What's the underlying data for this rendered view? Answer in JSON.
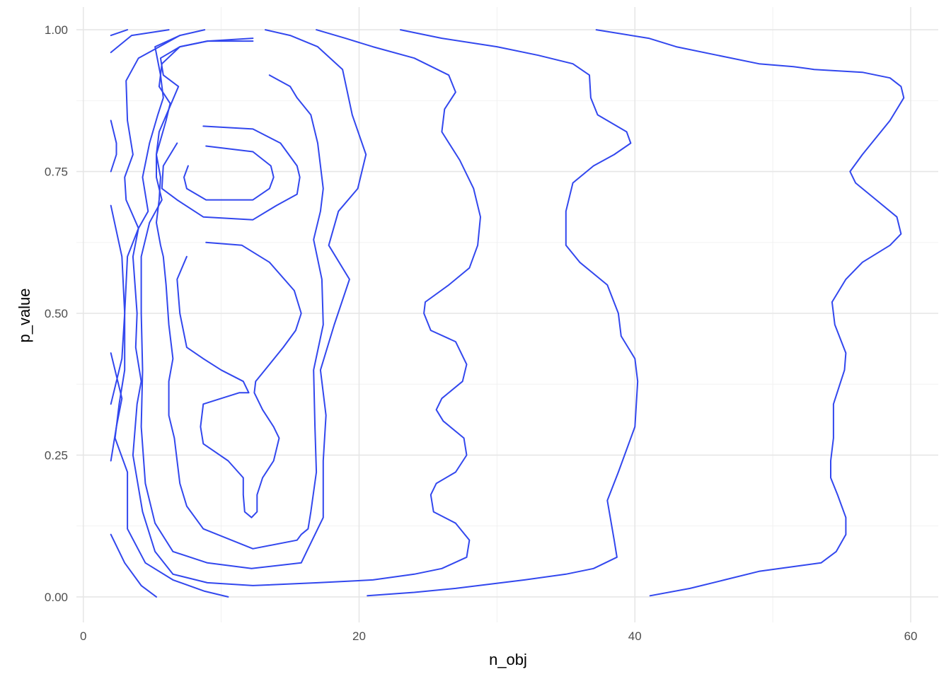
{
  "chart_data": {
    "type": "contour",
    "title": "",
    "xlabel": "n_obj",
    "ylabel": "p_value",
    "xlim": [
      -0.5,
      62
    ],
    "ylim": [
      -0.045,
      1.04
    ],
    "x_ticks": [
      0,
      20,
      40,
      60
    ],
    "x_tick_labels": [
      "0",
      "20",
      "40",
      "60"
    ],
    "x_minor_ticks": [
      10,
      30,
      50
    ],
    "y_ticks": [
      0,
      0.25,
      0.5,
      0.75,
      1
    ],
    "y_tick_labels": [
      "0.00",
      "0.25",
      "0.50",
      "0.75",
      "1.00"
    ],
    "y_minor_ticks": [
      0.125,
      0.375,
      0.625,
      0.875
    ],
    "grid": true,
    "legend": "none",
    "line_color": "#3247ee",
    "background": "#ffffff",
    "series": [
      {
        "points": [
          [
            2,
            0.99
          ],
          [
            3.2,
            1.0
          ]
        ]
      },
      {
        "points": [
          [
            2,
            0.84
          ],
          [
            2.4,
            0.8
          ],
          [
            2.4,
            0.78
          ],
          [
            2,
            0.75
          ]
        ]
      },
      {
        "points": [
          [
            2,
            0.69
          ],
          [
            2.8,
            0.6
          ],
          [
            3,
            0.5
          ],
          [
            2.8,
            0.42
          ],
          [
            2.2,
            0.36
          ],
          [
            2,
            0.34
          ]
        ]
      },
      {
        "points": [
          [
            2,
            0.43
          ],
          [
            2.8,
            0.35
          ],
          [
            2.4,
            0.3
          ],
          [
            2,
            0.24
          ]
        ]
      },
      {
        "points": [
          [
            2,
            0.11
          ],
          [
            3,
            0.06
          ],
          [
            4.2,
            0.02
          ],
          [
            5.3,
            0.0
          ]
        ]
      },
      {
        "points": [
          [
            2,
            0.96
          ],
          [
            3.5,
            0.99
          ],
          [
            6.2,
            1.0
          ]
        ]
      },
      {
        "points": [
          [
            8.8,
            1.0
          ],
          [
            7,
            0.99
          ],
          [
            4,
            0.95
          ],
          [
            3.1,
            0.91
          ],
          [
            3.2,
            0.84
          ],
          [
            3.6,
            0.78
          ],
          [
            3,
            0.74
          ],
          [
            3.1,
            0.7
          ],
          [
            4,
            0.65
          ],
          [
            3.2,
            0.6
          ],
          [
            3,
            0.5
          ],
          [
            3,
            0.4
          ],
          [
            2.6,
            0.34
          ],
          [
            2.3,
            0.28
          ],
          [
            3.2,
            0.22
          ],
          [
            3.2,
            0.12
          ],
          [
            4.5,
            0.06
          ],
          [
            6.5,
            0.03
          ],
          [
            8.8,
            0.01
          ],
          [
            10.5,
            0.0
          ]
        ]
      },
      {
        "points": [
          [
            13.2,
            1.0
          ],
          [
            15,
            0.99
          ],
          [
            17,
            0.97
          ],
          [
            18.8,
            0.93
          ],
          [
            19.5,
            0.85
          ],
          [
            20.5,
            0.78
          ],
          [
            19.9,
            0.72
          ],
          [
            18.5,
            0.68
          ],
          [
            17.8,
            0.62
          ],
          [
            19.3,
            0.56
          ],
          [
            18.2,
            0.48
          ],
          [
            17.2,
            0.4
          ],
          [
            17.6,
            0.32
          ],
          [
            17.4,
            0.24
          ],
          [
            17.4,
            0.14
          ],
          [
            16.2,
            0.08
          ],
          [
            15.8,
            0.06
          ],
          [
            12.2,
            0.05
          ],
          [
            9,
            0.06
          ],
          [
            6.5,
            0.08
          ],
          [
            5.2,
            0.13
          ],
          [
            4.5,
            0.2
          ],
          [
            4.2,
            0.3
          ],
          [
            4.3,
            0.4
          ],
          [
            4.2,
            0.5
          ],
          [
            4.2,
            0.6
          ],
          [
            4.8,
            0.66
          ],
          [
            5.7,
            0.7
          ],
          [
            5.3,
            0.74
          ],
          [
            5.3,
            0.78
          ],
          [
            6,
            0.84
          ],
          [
            6.3,
            0.87
          ],
          [
            5.5,
            0.9
          ],
          [
            5.7,
            0.94
          ],
          [
            7,
            0.97
          ],
          [
            9,
            0.98
          ],
          [
            12.3,
            0.98
          ]
        ]
      },
      {
        "points": [
          [
            16.9,
            1.0
          ],
          [
            19,
            0.985
          ],
          [
            21,
            0.97
          ],
          [
            24,
            0.95
          ],
          [
            26.5,
            0.92
          ],
          [
            27,
            0.89
          ],
          [
            26.2,
            0.86
          ],
          [
            26,
            0.82
          ],
          [
            27.3,
            0.77
          ],
          [
            28.3,
            0.72
          ],
          [
            28.8,
            0.67
          ],
          [
            28.6,
            0.62
          ],
          [
            28,
            0.58
          ],
          [
            26.5,
            0.55
          ],
          [
            24.8,
            0.52
          ],
          [
            24.7,
            0.5
          ],
          [
            25.2,
            0.47
          ],
          [
            27,
            0.45
          ],
          [
            27.8,
            0.41
          ],
          [
            27.5,
            0.38
          ],
          [
            26,
            0.35
          ],
          [
            25.6,
            0.33
          ],
          [
            26.1,
            0.31
          ],
          [
            27.6,
            0.28
          ],
          [
            27.8,
            0.25
          ],
          [
            27,
            0.22
          ],
          [
            25.6,
            0.2
          ],
          [
            25.2,
            0.18
          ],
          [
            25.4,
            0.15
          ],
          [
            27,
            0.13
          ],
          [
            28,
            0.1
          ],
          [
            27.8,
            0.07
          ],
          [
            26,
            0.05
          ],
          [
            24,
            0.04
          ],
          [
            21,
            0.03
          ],
          [
            17,
            0.025
          ],
          [
            12.3,
            0.02
          ],
          [
            9,
            0.025
          ],
          [
            6.5,
            0.04
          ],
          [
            5.2,
            0.08
          ],
          [
            4.3,
            0.15
          ],
          [
            3.6,
            0.25
          ],
          [
            3.9,
            0.34
          ],
          [
            4.2,
            0.38
          ],
          [
            3.8,
            0.44
          ],
          [
            3.9,
            0.5
          ],
          [
            3.6,
            0.6
          ],
          [
            4,
            0.65
          ],
          [
            4.7,
            0.68
          ],
          [
            4.3,
            0.74
          ],
          [
            4.8,
            0.8
          ],
          [
            5.4,
            0.85
          ],
          [
            5.8,
            0.88
          ],
          [
            5.6,
            0.92
          ],
          [
            5.2,
            0.97
          ],
          [
            7,
            0.99
          ]
        ]
      },
      {
        "points": [
          [
            23,
            1.0
          ],
          [
            26,
            0.985
          ],
          [
            30,
            0.97
          ],
          [
            33,
            0.955
          ],
          [
            35.5,
            0.94
          ],
          [
            36.7,
            0.92
          ],
          [
            36.8,
            0.88
          ],
          [
            37.3,
            0.85
          ],
          [
            39.4,
            0.82
          ],
          [
            39.7,
            0.8
          ],
          [
            38.5,
            0.78
          ],
          [
            37,
            0.76
          ],
          [
            35.5,
            0.73
          ],
          [
            35,
            0.68
          ],
          [
            35,
            0.62
          ],
          [
            36,
            0.59
          ],
          [
            38,
            0.55
          ],
          [
            38.8,
            0.5
          ],
          [
            39,
            0.46
          ],
          [
            40,
            0.42
          ],
          [
            40.2,
            0.38
          ],
          [
            40,
            0.3
          ],
          [
            38.8,
            0.22
          ],
          [
            38,
            0.17
          ],
          [
            38.5,
            0.1
          ],
          [
            38.7,
            0.07
          ],
          [
            37,
            0.05
          ],
          [
            35,
            0.04
          ],
          [
            32,
            0.03
          ],
          [
            27,
            0.015
          ],
          [
            24,
            0.008
          ],
          [
            20.6,
            0.002
          ]
        ]
      },
      {
        "points": [
          [
            37.2,
            1.0
          ],
          [
            41,
            0.985
          ],
          [
            43,
            0.97
          ],
          [
            46,
            0.955
          ],
          [
            49,
            0.94
          ],
          [
            51.5,
            0.935
          ],
          [
            53,
            0.93
          ],
          [
            56.5,
            0.925
          ],
          [
            58.5,
            0.915
          ],
          [
            59.3,
            0.9
          ],
          [
            59.5,
            0.88
          ],
          [
            58.5,
            0.84
          ],
          [
            56.5,
            0.78
          ],
          [
            55.6,
            0.75
          ],
          [
            56,
            0.73
          ],
          [
            57.5,
            0.7
          ],
          [
            59,
            0.67
          ],
          [
            59.3,
            0.64
          ],
          [
            58.5,
            0.62
          ],
          [
            56.5,
            0.59
          ],
          [
            55.3,
            0.56
          ],
          [
            54.3,
            0.52
          ],
          [
            54.5,
            0.48
          ],
          [
            55.3,
            0.43
          ],
          [
            55.2,
            0.4
          ],
          [
            54.8,
            0.37
          ],
          [
            54.4,
            0.34
          ],
          [
            54.4,
            0.28
          ],
          [
            54.2,
            0.24
          ],
          [
            54.2,
            0.21
          ],
          [
            54.7,
            0.18
          ],
          [
            55.3,
            0.14
          ],
          [
            55.3,
            0.11
          ],
          [
            54.6,
            0.08
          ],
          [
            53.5,
            0.06
          ],
          [
            52,
            0.055
          ],
          [
            49,
            0.045
          ],
          [
            46.5,
            0.03
          ],
          [
            44,
            0.015
          ],
          [
            41.1,
            0.002
          ]
        ]
      },
      {
        "points": [
          [
            13.5,
            0.92
          ],
          [
            15,
            0.9
          ],
          [
            15.5,
            0.88
          ],
          [
            16.5,
            0.85
          ],
          [
            17,
            0.8
          ],
          [
            17.4,
            0.72
          ],
          [
            17.2,
            0.68
          ],
          [
            16.7,
            0.63
          ],
          [
            17.3,
            0.56
          ],
          [
            17.4,
            0.48
          ],
          [
            16.7,
            0.4
          ],
          [
            16.8,
            0.3
          ],
          [
            16.9,
            0.22
          ],
          [
            16.5,
            0.15
          ],
          [
            16.3,
            0.12
          ],
          [
            15.8,
            0.11
          ],
          [
            15.5,
            0.1
          ],
          [
            12.3,
            0.085
          ],
          [
            8.7,
            0.12
          ],
          [
            7.5,
            0.16
          ],
          [
            7,
            0.2
          ],
          [
            6.6,
            0.28
          ],
          [
            6.2,
            0.32
          ],
          [
            6.2,
            0.38
          ],
          [
            6.5,
            0.42
          ],
          [
            6.2,
            0.48
          ],
          [
            6,
            0.55
          ],
          [
            5.8,
            0.6
          ],
          [
            5.6,
            0.62
          ],
          [
            5.3,
            0.66
          ],
          [
            5.5,
            0.7
          ],
          [
            5.6,
            0.74
          ],
          [
            5.3,
            0.78
          ],
          [
            5.5,
            0.82
          ],
          [
            6.2,
            0.86
          ],
          [
            6.9,
            0.9
          ],
          [
            5.8,
            0.92
          ],
          [
            5.6,
            0.95
          ],
          [
            7,
            0.97
          ],
          [
            9,
            0.98
          ],
          [
            12.3,
            0.985
          ]
        ]
      },
      {
        "points": [
          [
            8.7,
            0.83
          ],
          [
            12.3,
            0.825
          ],
          [
            14.3,
            0.8
          ],
          [
            15.5,
            0.76
          ],
          [
            15.7,
            0.74
          ],
          [
            15.5,
            0.71
          ],
          [
            14,
            0.69
          ],
          [
            12.3,
            0.665
          ],
          [
            8.7,
            0.67
          ],
          [
            6.8,
            0.7
          ],
          [
            5.7,
            0.72
          ],
          [
            5.8,
            0.76
          ],
          [
            6.8,
            0.8
          ]
        ]
      },
      {
        "points": [
          [
            8.9,
            0.795
          ],
          [
            12.3,
            0.785
          ],
          [
            13.6,
            0.76
          ],
          [
            13.8,
            0.74
          ],
          [
            13.5,
            0.72
          ],
          [
            12.3,
            0.7
          ],
          [
            8.9,
            0.7
          ],
          [
            7.5,
            0.72
          ],
          [
            7.3,
            0.74
          ],
          [
            7.6,
            0.76
          ]
        ]
      },
      {
        "points": [
          [
            8.9,
            0.625
          ],
          [
            11.5,
            0.62
          ],
          [
            13.5,
            0.59
          ],
          [
            15.3,
            0.54
          ],
          [
            15.8,
            0.5
          ],
          [
            15.4,
            0.47
          ],
          [
            14.5,
            0.44
          ],
          [
            13.5,
            0.41
          ],
          [
            12.5,
            0.38
          ],
          [
            12.4,
            0.36
          ],
          [
            13,
            0.33
          ],
          [
            13.8,
            0.3
          ],
          [
            14.2,
            0.28
          ],
          [
            13.8,
            0.24
          ],
          [
            13,
            0.21
          ],
          [
            12.6,
            0.18
          ],
          [
            12.6,
            0.15
          ],
          [
            12.2,
            0.14
          ],
          [
            11.7,
            0.15
          ],
          [
            11.6,
            0.18
          ],
          [
            11.6,
            0.21
          ],
          [
            10.5,
            0.24
          ],
          [
            8.7,
            0.27
          ],
          [
            8.5,
            0.3
          ],
          [
            8.7,
            0.34
          ],
          [
            10,
            0.35
          ],
          [
            11.3,
            0.36
          ],
          [
            12,
            0.36
          ],
          [
            11.6,
            0.38
          ],
          [
            10,
            0.4
          ],
          [
            8.7,
            0.42
          ],
          [
            7.5,
            0.44
          ],
          [
            7,
            0.5
          ],
          [
            6.8,
            0.56
          ],
          [
            7.5,
            0.6
          ]
        ]
      }
    ]
  }
}
